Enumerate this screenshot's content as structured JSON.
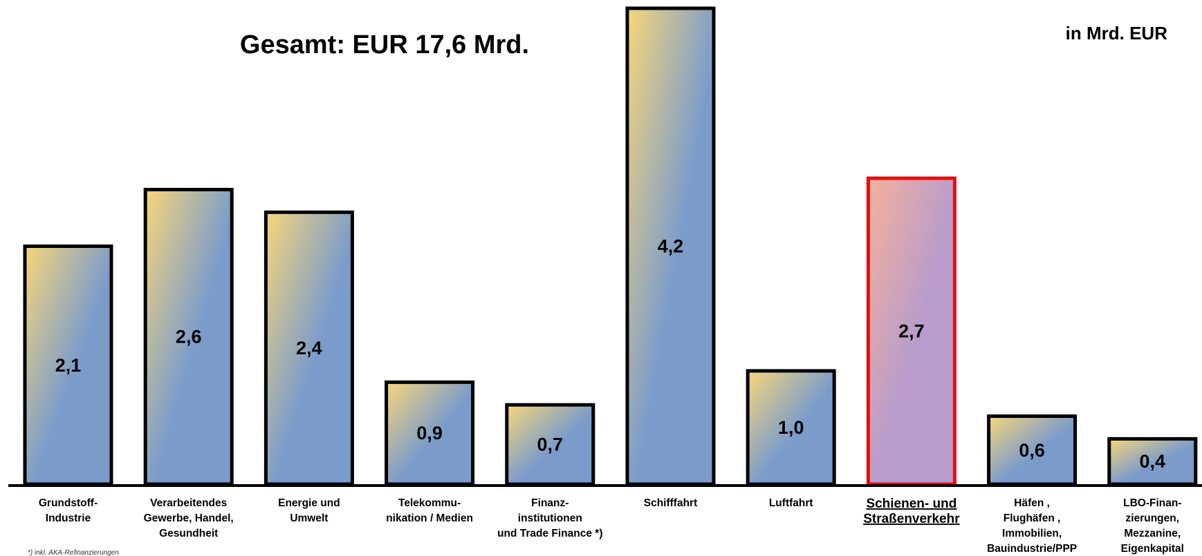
{
  "chart_data": {
    "type": "bar",
    "title": "Gesamt: EUR 17,6 Mrd.",
    "unit_label": "in Mrd. EUR",
    "categories": [
      [
        "Grundstoff-",
        "Industrie"
      ],
      [
        "Verarbeitendes",
        "Gewerbe, Handel,",
        "Gesundheit"
      ],
      [
        "Energie und",
        "Umwelt"
      ],
      [
        "Telekommu-",
        "nikation / Medien"
      ],
      [
        "Finanz-",
        "institutionen",
        "und Trade Finance  *)"
      ],
      [
        "Schifffahrt"
      ],
      [
        "Luftfahrt"
      ],
      [
        "Schienen- und",
        "Straßenverkehr"
      ],
      [
        "Häfen ,",
        "Flughäfen ,",
        "Immobilien,",
        "Bauindustrie/PPP"
      ],
      [
        "LBO-Finan-",
        "zierungen,",
        "Mezzanine,",
        "Eigenkapital"
      ]
    ],
    "values": [
      2.1,
      2.6,
      2.4,
      0.9,
      0.7,
      4.2,
      1.0,
      2.7,
      0.6,
      0.4
    ],
    "value_labels": [
      "2,1",
      "2,6",
      "2,4",
      "0,9",
      "0,7",
      "4,2",
      "1,0",
      "2,7",
      "0,6",
      "0,4"
    ],
    "highlight_index": 7,
    "ylim": [
      0,
      4.2
    ],
    "grid": false,
    "colors": {
      "gradient_light": "#f8d67a",
      "gradient_dark": "#7b9ccb",
      "highlight_light": "#f6b19b",
      "highlight_dark": "#b79ccc",
      "highlight_border": "#e01010",
      "border": "#000000"
    }
  },
  "footnote": "*) inkl. AKA-Refinanzierungen"
}
